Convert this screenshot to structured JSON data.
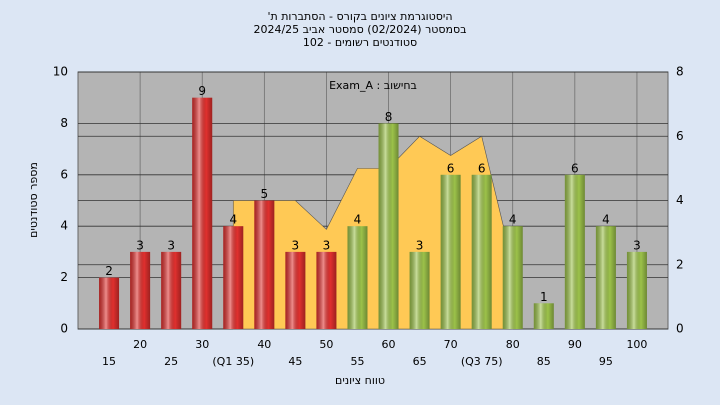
{
  "chart_data": {
    "type": "bar",
    "title_lines": [
      "היסטוגרמת ציונים בקורס - הסתברות ת'",
      "בסמסטר (02/2024) סמסטר אביב 2024/25",
      "סטודנטים רשומים - 102"
    ],
    "annotation": "בחישוב : Exam_A",
    "x_label": "טווח ציונים",
    "y_label": "מספר סטודנטים",
    "categories": [
      "15",
      "20",
      "25",
      "30",
      "(Q1 35)",
      "40",
      "45",
      "50",
      "55",
      "60",
      "65",
      "70",
      "(Q3 75)",
      "80",
      "85",
      "90",
      "95",
      "100"
    ],
    "values": [
      2,
      3,
      3,
      9,
      4,
      5,
      3,
      3,
      4,
      8,
      3,
      6,
      6,
      4,
      1,
      6,
      4,
      3
    ],
    "bar_colors": [
      "#e0302e",
      "#e0302e",
      "#e0302e",
      "#e0302e",
      "#e0302e",
      "#e0302e",
      "#e0302e",
      "#e0302e",
      "#9cc24a",
      "#9cc24a",
      "#9cc24a",
      "#9cc24a",
      "#9cc24a",
      "#9cc24a",
      "#9cc24a",
      "#9cc24a",
      "#9cc24a",
      "#9cc24a"
    ],
    "area": {
      "color": "#ffc955",
      "axis": "y2",
      "values": [
        null,
        null,
        null,
        null,
        4,
        4,
        4,
        3.1,
        5,
        5,
        6,
        5.4,
        6,
        2,
        null,
        null,
        null,
        null
      ]
    },
    "ylim": [
      0,
      10
    ],
    "yticks": [
      0,
      2,
      4,
      6,
      8,
      10
    ],
    "y2lim": [
      0,
      8
    ],
    "y2ticks": [
      0,
      2,
      4,
      6,
      8
    ],
    "grid": true
  }
}
